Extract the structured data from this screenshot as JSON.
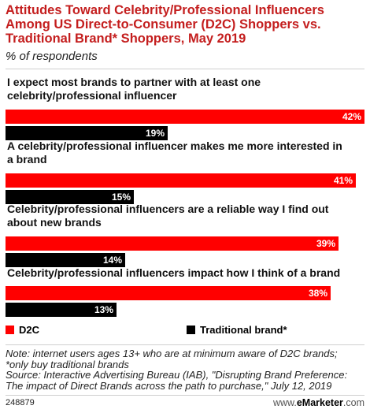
{
  "header": {
    "title_lines": [
      "Attitudes Toward Celebrity/Professional Influencers",
      "Among US Direct-to-Consumer (D2C) Shoppers vs.",
      "Traditional Brand* Shoppers, May 2019"
    ],
    "subtitle": "% of respondents"
  },
  "chart_data": {
    "type": "bar",
    "orientation": "horizontal",
    "categories": [
      [
        "I expect most brands to partner with at least one",
        "celebrity/professional influencer"
      ],
      [
        "A celebrity/professional influencer makes me more interested in",
        "a brand"
      ],
      [
        "Celebrity/professional influencers are a reliable way I find out",
        "about new brands"
      ],
      [
        "Celebrity/professional influencers impact how I think of a brand"
      ]
    ],
    "series": [
      {
        "name": "D2C",
        "values": [
          42,
          41,
          39,
          38
        ],
        "color": "#ff0000"
      },
      {
        "name": "Traditional brand*",
        "values": [
          19,
          15,
          14,
          13
        ],
        "color": "#000000"
      }
    ],
    "value_suffix": "%",
    "xlim": [
      0,
      42
    ],
    "grid": false,
    "legend_position": "bottom-left"
  },
  "legend": {
    "d2c": "D2C",
    "traditional": "Traditional brand*"
  },
  "notes": {
    "lines": [
      "Note: internet users ages 13+ who are at minimum aware of D2C brands;",
      "*only buy traditional brands",
      "Source: Interactive Advertising Bureau (IAB), \"Disrupting Brand Preference:",
      "The impact of Direct Brands across the path to purchase,\" July 12, 2019"
    ]
  },
  "footer": {
    "chart_id": "248879",
    "brand_prefix": "www.",
    "brand_name": "eMarketer",
    "brand_suffix": ".com"
  }
}
